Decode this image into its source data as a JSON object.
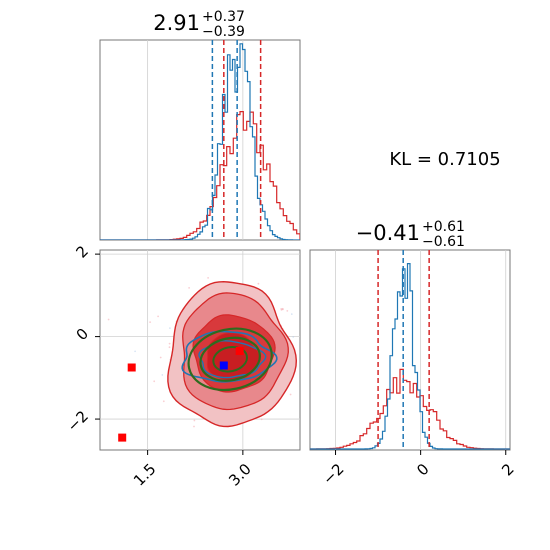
{
  "chart_data": {
    "type": "corner",
    "colors": {
      "series_a": "#1f77b4",
      "series_b": "#d62728",
      "ellipse": "#2e6b1e",
      "marker_blue": "#0000ff",
      "marker_red": "#ff0000"
    },
    "param1": {
      "title_value": "2.91",
      "title_upper": "+0.37",
      "title_lower": "−0.39",
      "median": 2.91,
      "lower": 2.52,
      "upper": 3.28,
      "red_lines": [
        2.7,
        3.28
      ],
      "blue_lines": [
        2.52,
        2.91
      ],
      "xlim": [
        0.75,
        3.9
      ],
      "ticks": [
        1.5,
        3.0
      ],
      "tick_labels": [
        "1.5",
        "3.0"
      ],
      "series_a_hist": {
        "center": 2.9,
        "sigma": 0.22,
        "peak": 1.0
      },
      "series_b_hist": {
        "center": 3.05,
        "sigma": 0.35,
        "peak": 0.62
      }
    },
    "param2": {
      "title_value": "−0.41",
      "title_upper": "+0.61",
      "title_lower": "−0.61",
      "median": -0.41,
      "red_lines": [
        -1.0,
        0.2
      ],
      "blue_lines": [
        -0.41
      ],
      "xlim": [
        -2.6,
        2.1
      ],
      "ylim": [
        -2.75,
        2.1
      ],
      "ticks": [
        -2,
        0,
        2
      ],
      "tick_labels": [
        "−2",
        "0",
        "2"
      ],
      "series_a_hist": {
        "center": -0.4,
        "sigma": 0.22,
        "peak": 1.0
      },
      "series_b_hist": {
        "center": -0.35,
        "sigma": 0.55,
        "peak": 0.38
      }
    },
    "joint": {
      "red_contour_center": [
        2.8,
        -0.45
      ],
      "blue_contour_center": [
        2.75,
        -0.5
      ],
      "ellipse_center": [
        2.8,
        -0.55
      ],
      "blue_marker": [
        2.7,
        -0.7
      ],
      "red_markers": [
        [
          1.25,
          -0.75
        ],
        [
          1.1,
          -2.45
        ],
        [
          2.95,
          -0.35
        ]
      ]
    },
    "kl_label": "KL = 0.7105",
    "grid": true
  }
}
